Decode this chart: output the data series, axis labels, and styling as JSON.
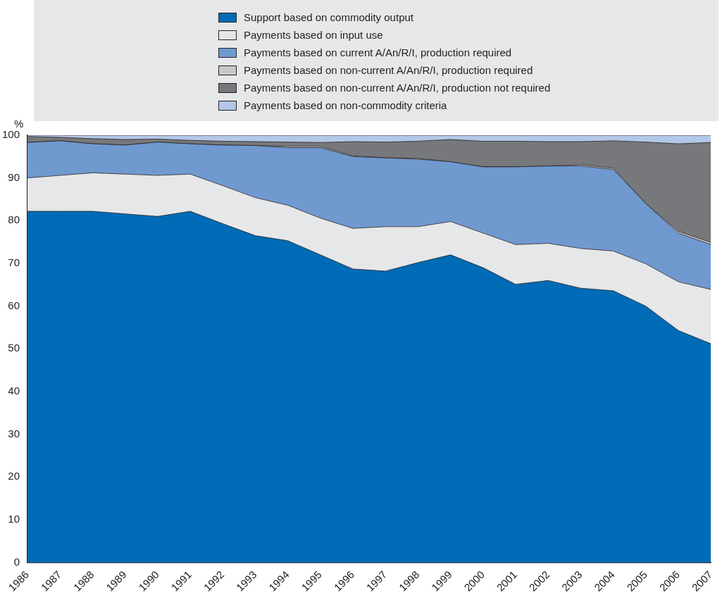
{
  "chart_data": {
    "type": "area",
    "stacked": true,
    "ylabel": "%",
    "legend": "top",
    "grid": false,
    "categories": [
      "1986",
      "1987",
      "1988",
      "1989",
      "1990",
      "1991",
      "1992",
      "1993",
      "1994",
      "1995",
      "1996",
      "1997",
      "1998",
      "1999",
      "2000",
      "2001",
      "2002",
      "2003",
      "2004",
      "2005",
      "2006",
      "2007"
    ],
    "ylim": [
      0,
      100
    ],
    "yticks": [
      0,
      10,
      20,
      30,
      40,
      50,
      60,
      70,
      80,
      90,
      100
    ],
    "series": [
      {
        "name": "Support based on commodity output",
        "color": "#006bb6",
        "values": [
          82.2,
          82.2,
          82.2,
          81.6,
          81.0,
          82.2,
          79.3,
          76.5,
          75.3,
          72.0,
          68.7,
          68.2,
          70.2,
          72.0,
          69.0,
          65.1,
          66.0,
          64.2,
          63.6,
          60.0,
          54.3,
          51.2
        ]
      },
      {
        "name": "Payments based on input use",
        "color": "#e6e7e9",
        "values": [
          7.8,
          8.4,
          9.0,
          9.3,
          9.6,
          8.7,
          8.9,
          8.9,
          8.3,
          8.6,
          9.5,
          10.4,
          8.4,
          7.8,
          8.1,
          9.3,
          8.7,
          9.3,
          9.3,
          9.9,
          11.4,
          12.7
        ]
      },
      {
        "name": "Payments based on current A/An/R/I, production required",
        "color": "#7099d0",
        "values": [
          8.3,
          8.1,
          6.8,
          6.8,
          7.8,
          7.1,
          9.5,
          12.2,
          13.5,
          16.5,
          16.8,
          16.1,
          15.8,
          14.0,
          15.5,
          18.2,
          18.1,
          19.3,
          19.1,
          14.1,
          11.4,
          10.5
        ]
      },
      {
        "name": "Payments based on non-current A/An/R/I, production required",
        "color": "#c8c8c8",
        "values": [
          0,
          0,
          0,
          0,
          0,
          0,
          0,
          0,
          0.3,
          0.3,
          0.2,
          0,
          0.2,
          0,
          0,
          0,
          0,
          0.3,
          0.3,
          0,
          0.4,
          0.5
        ]
      },
      {
        "name": "Payments based on non-current A/An/R/I, production not required",
        "color": "#77787b",
        "values": [
          1.4,
          0.8,
          1.2,
          1.3,
          0.7,
          0.8,
          0.9,
          0.9,
          1.0,
          0.9,
          3.3,
          3.7,
          4.0,
          5.2,
          6.0,
          6.0,
          5.7,
          5.4,
          6.4,
          14.4,
          20.5,
          23.4
        ]
      },
      {
        "name": "Payments based on non-commodity criteria",
        "color": "#b3c8e8",
        "values": [
          0.3,
          0.5,
          0.8,
          1.0,
          0.9,
          1.2,
          1.4,
          1.5,
          1.6,
          1.7,
          1.5,
          1.6,
          1.4,
          1.0,
          1.4,
          1.4,
          1.5,
          1.5,
          1.3,
          1.6,
          2.0,
          1.7
        ]
      }
    ]
  }
}
